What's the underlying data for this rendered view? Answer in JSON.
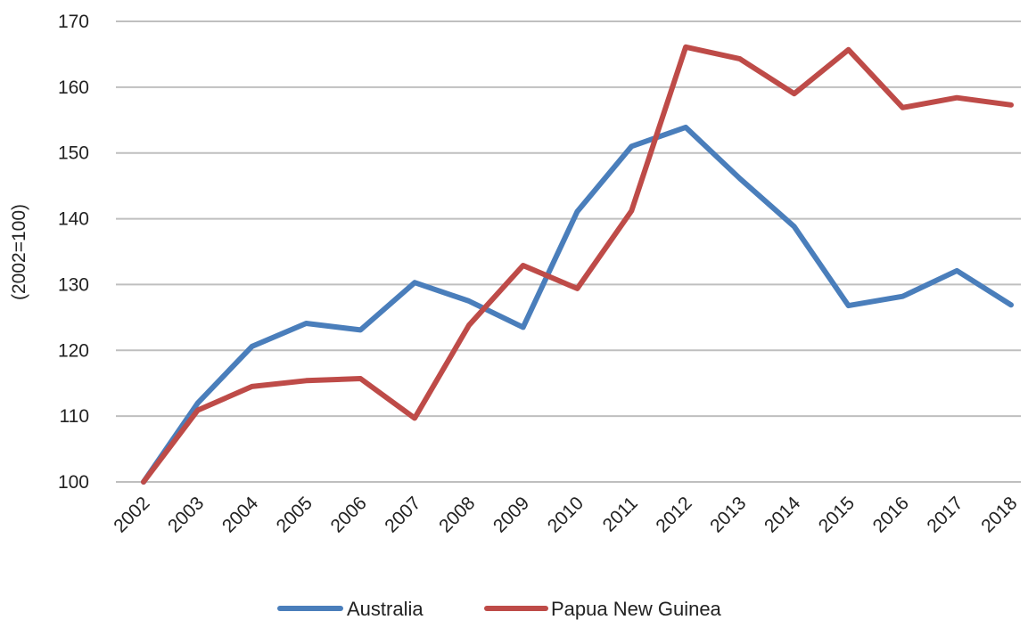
{
  "chart_data": {
    "type": "line",
    "title": "",
    "xlabel": "",
    "ylabel": "(2002=100)",
    "categories": [
      "2002",
      "2003",
      "2004",
      "2005",
      "2006",
      "2007",
      "2008",
      "2009",
      "2010",
      "2011",
      "2012",
      "2013",
      "2014",
      "2015",
      "2016",
      "2017",
      "2018"
    ],
    "ylim": [
      100,
      170
    ],
    "yticks": [
      100,
      110,
      120,
      130,
      140,
      150,
      160,
      170
    ],
    "grid": true,
    "legend_position": "bottom",
    "series": [
      {
        "name": "Australia",
        "color": "#4a7ebb",
        "values": [
          100,
          112,
          120.6,
          124.1,
          123.1,
          130.3,
          127.5,
          123.5,
          141.1,
          151,
          153.9,
          146.1,
          138.8,
          126.8,
          128.2,
          132.1,
          126.9
        ]
      },
      {
        "name": "Papua New Guinea",
        "color": "#be4b48",
        "values": [
          100,
          110.9,
          114.5,
          115.4,
          115.7,
          109.7,
          123.8,
          132.9,
          129.4,
          141.2,
          166.1,
          164.3,
          159,
          165.7,
          156.9,
          158.4,
          157.3
        ]
      }
    ]
  }
}
